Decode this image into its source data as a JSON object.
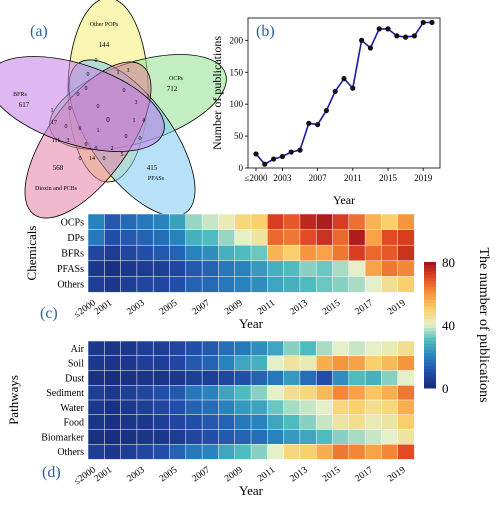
{
  "panels": {
    "a": "(a)",
    "b": "(b)",
    "c": "(c)",
    "d": "(d)"
  },
  "chart_data": [
    {
      "type": "venn",
      "panel": "(a)",
      "sets": [
        {
          "name": "Other POPs",
          "unique": 144,
          "color": "#f3f07e"
        },
        {
          "name": "OCPs",
          "unique": 712,
          "color": "#8fe08f"
        },
        {
          "name": "PFASs",
          "unique": 415,
          "color": "#7cc8f2"
        },
        {
          "name": "Dioxin and PCBs",
          "unique": 568,
          "color": "#e67fa6"
        },
        {
          "name": "BFRs",
          "unique": 617,
          "color": "#c77ee6"
        }
      ],
      "center_value": 0,
      "intersection_labels": [
        "0",
        "3",
        "1",
        "0",
        "1",
        "3",
        "0",
        "0",
        "0",
        "0",
        "0",
        "1",
        "0",
        "0",
        "1",
        "17",
        "0",
        "0",
        "111",
        "3",
        "0",
        "0",
        "2",
        "5",
        "0",
        "14",
        "0",
        "0",
        "1"
      ]
    },
    {
      "type": "line",
      "panel": "(b)",
      "x": [
        "≤2000",
        "2001",
        "2002",
        "2003",
        "2004",
        "2005",
        "2006",
        "2007",
        "2008",
        "2009",
        "2010",
        "2011",
        "2012",
        "2013",
        "2014",
        "2015",
        "2016",
        "2017",
        "2018",
        "2019",
        "2020"
      ],
      "values": [
        22,
        6,
        14,
        18,
        25,
        28,
        70,
        68,
        90,
        120,
        140,
        125,
        200,
        188,
        218,
        218,
        207,
        205,
        207,
        228,
        228
      ],
      "xticks": [
        "≤2000",
        "2003",
        "2007",
        "2011",
        "2015",
        "2019"
      ],
      "yticks": [
        0,
        50,
        100,
        150,
        200
      ],
      "xlabel": "Year",
      "ylabel": "Number of publications",
      "ylim": [
        0,
        235
      ],
      "color": "#1a1aa6"
    },
    {
      "type": "heatmap",
      "panel": "(c)",
      "rows": [
        "OCPs",
        "DPs",
        "BFRs",
        "PFASs",
        "Others"
      ],
      "cols": [
        "≤2000",
        "2001",
        "2002",
        "2003",
        "2004",
        "2005",
        "2006",
        "2007",
        "2008",
        "2009",
        "2010",
        "2011",
        "2012",
        "2013",
        "2014",
        "2015",
        "2016",
        "2017",
        "2018",
        "2019"
      ],
      "xticks": [
        "≤2000",
        "2001",
        "2003",
        "2005",
        "2007",
        "2009",
        "2011",
        "2013",
        "2015",
        "2017",
        "2019"
      ],
      "ylabel": "Chemicals",
      "xlabel": "Year",
      "values": [
        [
          20,
          12,
          15,
          18,
          20,
          25,
          35,
          38,
          42,
          48,
          50,
          72,
          68,
          76,
          78,
          72,
          65,
          55,
          50,
          60
        ],
        [
          18,
          10,
          12,
          14,
          16,
          20,
          28,
          30,
          35,
          40,
          44,
          66,
          64,
          70,
          74,
          66,
          78,
          58,
          70,
          72
        ],
        [
          8,
          5,
          8,
          10,
          12,
          14,
          20,
          22,
          28,
          30,
          32,
          55,
          50,
          60,
          58,
          64,
          72,
          66,
          68,
          74
        ],
        [
          4,
          2,
          4,
          5,
          6,
          8,
          12,
          14,
          18,
          20,
          24,
          28,
          30,
          34,
          32,
          36,
          40,
          58,
          64,
          62
        ],
        [
          6,
          4,
          6,
          8,
          8,
          10,
          14,
          15,
          18,
          20,
          22,
          26,
          28,
          30,
          32,
          34,
          36,
          40,
          46,
          50
        ]
      ]
    },
    {
      "type": "heatmap",
      "panel": "(d)",
      "rows": [
        "Air",
        "Soil",
        "Dust",
        "Sediment",
        "Water",
        "Food",
        "Biomarker",
        "Others"
      ],
      "cols": [
        "≤2000",
        "2001",
        "2002",
        "2003",
        "2004",
        "2005",
        "2006",
        "2007",
        "2008",
        "2009",
        "2010",
        "2011",
        "2012",
        "2013",
        "2014",
        "2015",
        "2016",
        "2017",
        "2018",
        "2019"
      ],
      "xticks": [
        "≤2000",
        "2001",
        "2003",
        "2005",
        "2007",
        "2009",
        "2011",
        "2013",
        "2015",
        "2017",
        "2019"
      ],
      "ylabel": "Pathways",
      "xlabel": "Year",
      "values": [
        [
          4,
          3,
          4,
          6,
          6,
          8,
          10,
          12,
          16,
          18,
          22,
          26,
          34,
          30,
          36,
          40,
          38,
          40,
          42,
          46
        ],
        [
          4,
          3,
          4,
          6,
          6,
          8,
          12,
          14,
          20,
          26,
          28,
          40,
          44,
          42,
          56,
          60,
          58,
          50,
          54,
          60
        ],
        [
          2,
          1,
          2,
          3,
          3,
          4,
          6,
          6,
          8,
          10,
          14,
          18,
          24,
          16,
          10,
          22,
          30,
          28,
          34,
          40
        ],
        [
          6,
          4,
          6,
          8,
          10,
          12,
          18,
          20,
          26,
          30,
          34,
          40,
          46,
          48,
          54,
          62,
          58,
          52,
          56,
          64
        ],
        [
          4,
          2,
          4,
          6,
          8,
          10,
          14,
          16,
          20,
          24,
          26,
          32,
          36,
          38,
          40,
          48,
          50,
          46,
          48,
          56
        ],
        [
          3,
          2,
          3,
          4,
          6,
          8,
          10,
          12,
          14,
          18,
          20,
          26,
          30,
          34,
          38,
          44,
          46,
          42,
          44,
          50
        ],
        [
          2,
          1,
          2,
          3,
          4,
          5,
          8,
          10,
          12,
          14,
          16,
          20,
          24,
          26,
          30,
          34,
          36,
          38,
          40,
          44
        ],
        [
          6,
          4,
          6,
          8,
          10,
          14,
          18,
          20,
          26,
          30,
          34,
          40,
          48,
          50,
          56,
          64,
          62,
          58,
          62,
          70
        ]
      ]
    },
    {
      "type": "colorbar",
      "label": "The number of publications",
      "ticks": [
        0,
        40,
        80
      ],
      "range": [
        0,
        80
      ]
    }
  ]
}
